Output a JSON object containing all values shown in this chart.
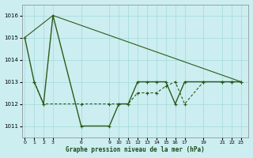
{
  "title": "Graphe pression niveau de la mer (hPa)",
  "background_color": "#cceef0",
  "grid_color": "#aadddd",
  "line_color": "#2d5a1b",
  "ylim": [
    1010.5,
    1016.5
  ],
  "yticks": [
    1011,
    1012,
    1013,
    1014,
    1015,
    1016
  ],
  "x_ticks": [
    0,
    1,
    2,
    3,
    6,
    9,
    10,
    11,
    12,
    13,
    14,
    15,
    16,
    17,
    19,
    21,
    22,
    23
  ],
  "xlim": [
    -0.3,
    23.8
  ],
  "series": [
    {
      "x": [
        0,
        1,
        2,
        3,
        6,
        9,
        10,
        11,
        12,
        13,
        14,
        15,
        16,
        17,
        19,
        21,
        22,
        23
      ],
      "y": [
        1015,
        1013,
        1012,
        1016,
        1011,
        1011,
        1012,
        1012,
        1013,
        1013,
        1013,
        1013,
        1012,
        1013,
        1013,
        1013,
        1013,
        1013
      ],
      "marker": "+",
      "linestyle": "-",
      "linewidth": 1.0
    },
    {
      "x": [
        0,
        3,
        23
      ],
      "y": [
        1015,
        1016,
        1013
      ],
      "marker": null,
      "linestyle": "-",
      "linewidth": 0.8
    },
    {
      "x": [
        1,
        2,
        6,
        9,
        10,
        11,
        12,
        13,
        14,
        15,
        16,
        17,
        19,
        21,
        22,
        23
      ],
      "y": [
        1013,
        1012,
        1012,
        1012,
        1012,
        1012,
        1012.5,
        1012.5,
        1012.5,
        1012.8,
        1013,
        1012,
        1013,
        1013,
        1013,
        1013
      ],
      "marker": "+",
      "linestyle": "--",
      "linewidth": 0.8
    }
  ]
}
